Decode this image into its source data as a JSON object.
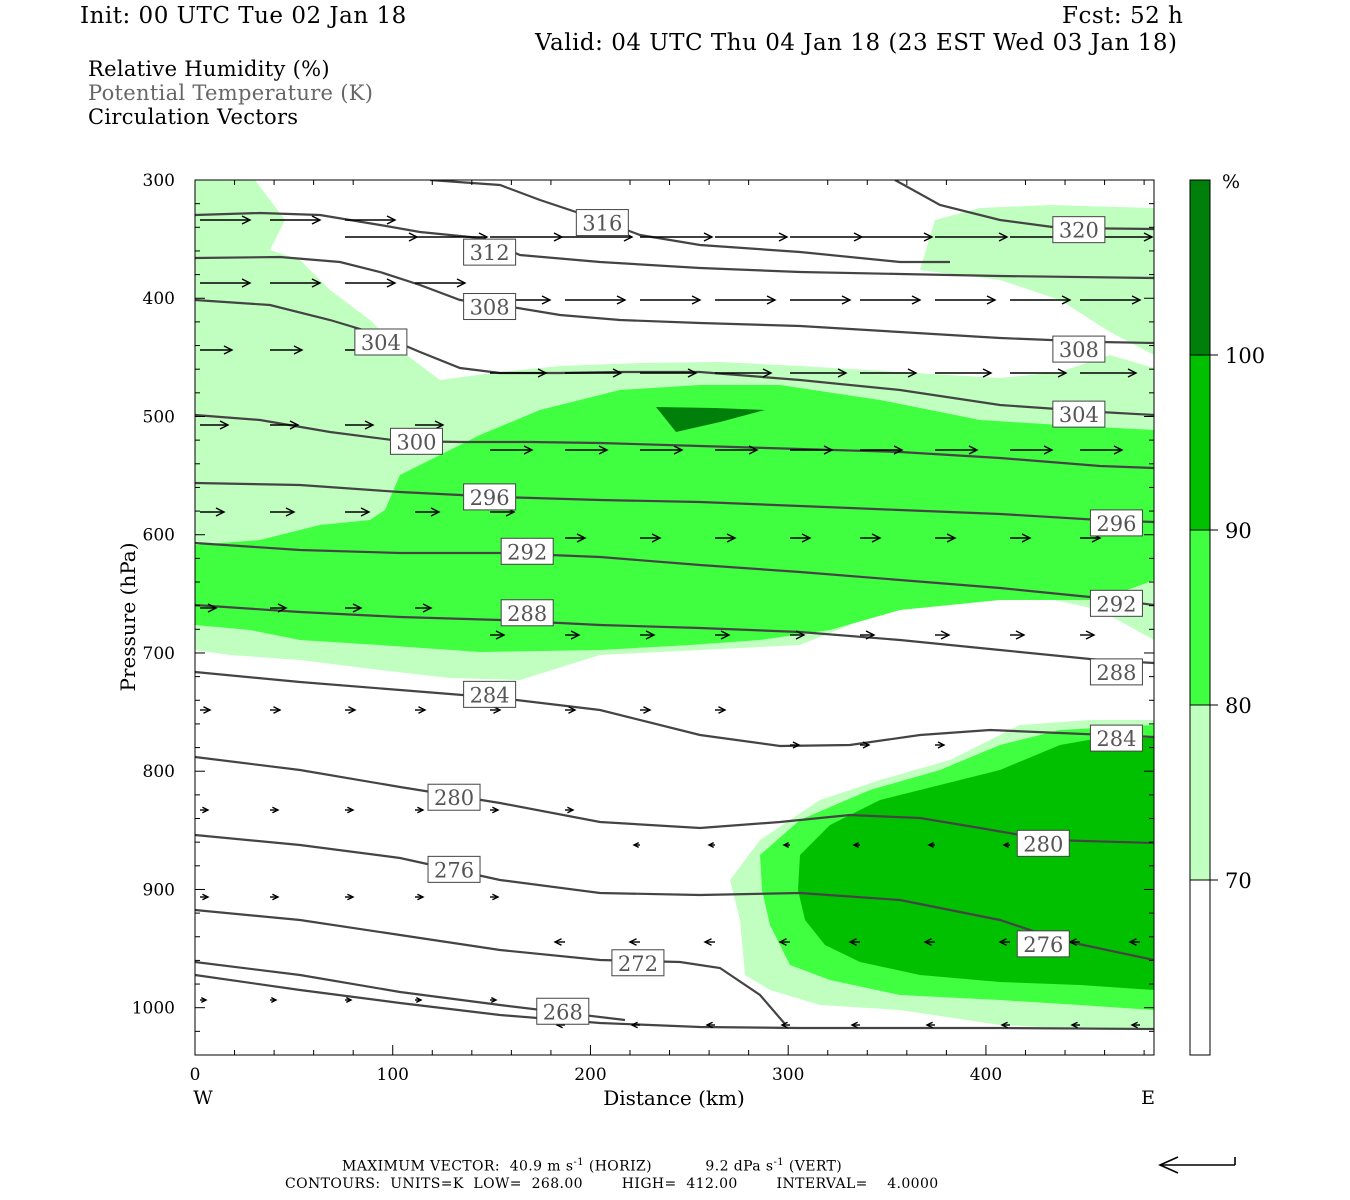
{
  "header": {
    "init": "Init: 00 UTC Tue 02 Jan 18",
    "fcst": "Fcst:   52 h",
    "valid": "Valid: 04 UTC Thu 04 Jan 18 (23 EST Wed 03 Jan 18)"
  },
  "legend": {
    "line1": "Relative Humidity (%)",
    "line2": "Potential Temperature (K)",
    "line3": "Circulation Vectors"
  },
  "colorbar": {
    "unit": "%",
    "labels": [
      "100",
      "90",
      "80",
      "70"
    ],
    "colors": [
      "#00800a",
      "#00c000",
      "#40ff40",
      "#c0ffc0",
      "#ffffff"
    ]
  },
  "footer": {
    "max_vector_label": "MAXIMUM VECTOR:",
    "horiz_value": "40.9 m s",
    "horiz_exp": "-1",
    "horiz_tag": "(HORIZ)",
    "vert_value": "9.2 dPa s",
    "vert_exp": "-1",
    "vert_tag": "(VERT)",
    "contours": "CONTOURS:  UNITS=K  LOW=  268.00        HIGH=  412.00        INTERVAL=    4.0000"
  },
  "chart_data": {
    "type": "cross-section",
    "xlabel": "Distance (km)",
    "ylabel": "Pressure (hPa)",
    "x_ticks": [
      0,
      100,
      200,
      300,
      400
    ],
    "y_ticks": [
      300,
      400,
      500,
      600,
      700,
      800,
      900,
      1000
    ],
    "xlim": [
      0,
      485
    ],
    "ylim": [
      300,
      1040
    ],
    "west_label": "W",
    "east_label": "E",
    "rh_levels": [
      70,
      80,
      90,
      100
    ],
    "theta_labels": [
      {
        "text": "316",
        "x": 206,
        "p": 336
      },
      {
        "text": "312",
        "x": 149,
        "p": 361
      },
      {
        "text": "308",
        "x": 149,
        "p": 407
      },
      {
        "text": "304",
        "x": 94,
        "p": 437
      },
      {
        "text": "300",
        "x": 112,
        "p": 521
      },
      {
        "text": "296",
        "x": 149,
        "p": 568
      },
      {
        "text": "292",
        "x": 168,
        "p": 614
      },
      {
        "text": "288",
        "x": 168,
        "p": 666
      },
      {
        "text": "284",
        "x": 149,
        "p": 735
      },
      {
        "text": "280",
        "x": 131,
        "p": 822
      },
      {
        "text": "276",
        "x": 131,
        "p": 883
      },
      {
        "text": "272",
        "x": 224,
        "p": 962
      },
      {
        "text": "268",
        "x": 186,
        "p": 1003
      },
      {
        "text": "320",
        "x": 447,
        "p": 342
      },
      {
        "text": "308",
        "x": 447,
        "p": 443
      },
      {
        "text": "304",
        "x": 447,
        "p": 498
      },
      {
        "text": "296",
        "x": 466,
        "p": 590
      },
      {
        "text": "292",
        "x": 466,
        "p": 658
      },
      {
        "text": "288",
        "x": 466,
        "p": 716
      },
      {
        "text": "284",
        "x": 466,
        "p": 772
      },
      {
        "text": "280",
        "x": 429,
        "p": 861
      },
      {
        "text": "276",
        "x": 429,
        "p": 946
      }
    ]
  }
}
